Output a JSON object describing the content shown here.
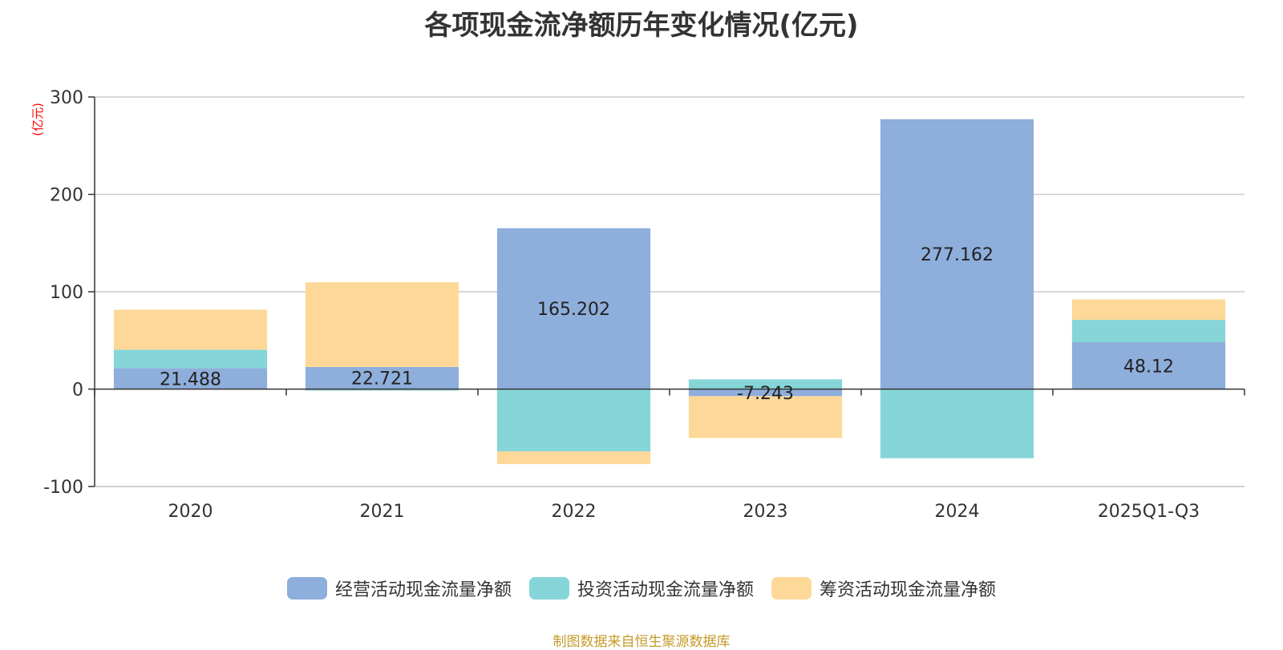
{
  "chart_data": {
    "type": "bar",
    "stacked": true,
    "title": "各项现金流净额历年变化情况(亿元)",
    "ylabel": "(亿元)",
    "ylim": [
      -100,
      300
    ],
    "yticks": [
      300,
      200,
      100,
      0,
      -100
    ],
    "categories": [
      "2020",
      "2021",
      "2022",
      "2023",
      "2024",
      "2025Q1-Q3"
    ],
    "series": [
      {
        "name": "经营活动现金流量净额",
        "color": "#8eaedb",
        "values": [
          21.488,
          22.721,
          165.202,
          -7.243,
          277.162,
          48.12
        ],
        "labeled": true
      },
      {
        "name": "投资活动现金流量净额",
        "color": "#86d5d8",
        "values": [
          19,
          -1.5,
          -64,
          10,
          -71,
          23
        ],
        "labeled": false
      },
      {
        "name": "筹资活动现金流量净额",
        "color": "#fdd898",
        "values": [
          41,
          87,
          -13,
          -43,
          0,
          21
        ],
        "labeled": false
      }
    ],
    "data_labels": [
      "21.488",
      "22.721",
      "165.202",
      "-7.243",
      "277.162",
      "48.12"
    ],
    "legend_position": "bottom",
    "grid": true
  },
  "source_note": "制图数据来自恒生聚源数据库"
}
